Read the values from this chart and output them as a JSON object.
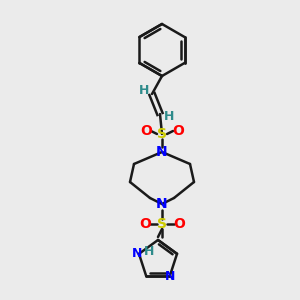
{
  "bg_color": "#ebebeb",
  "bond_color": "#1a1a1a",
  "N_color": "#0000ff",
  "S_color": "#cccc00",
  "O_color": "#ff0000",
  "H_color": "#2e8b8b",
  "figsize": [
    3.0,
    3.0
  ],
  "dpi": 100,
  "xlim": [
    0,
    300
  ],
  "ylim": [
    0,
    300
  ]
}
